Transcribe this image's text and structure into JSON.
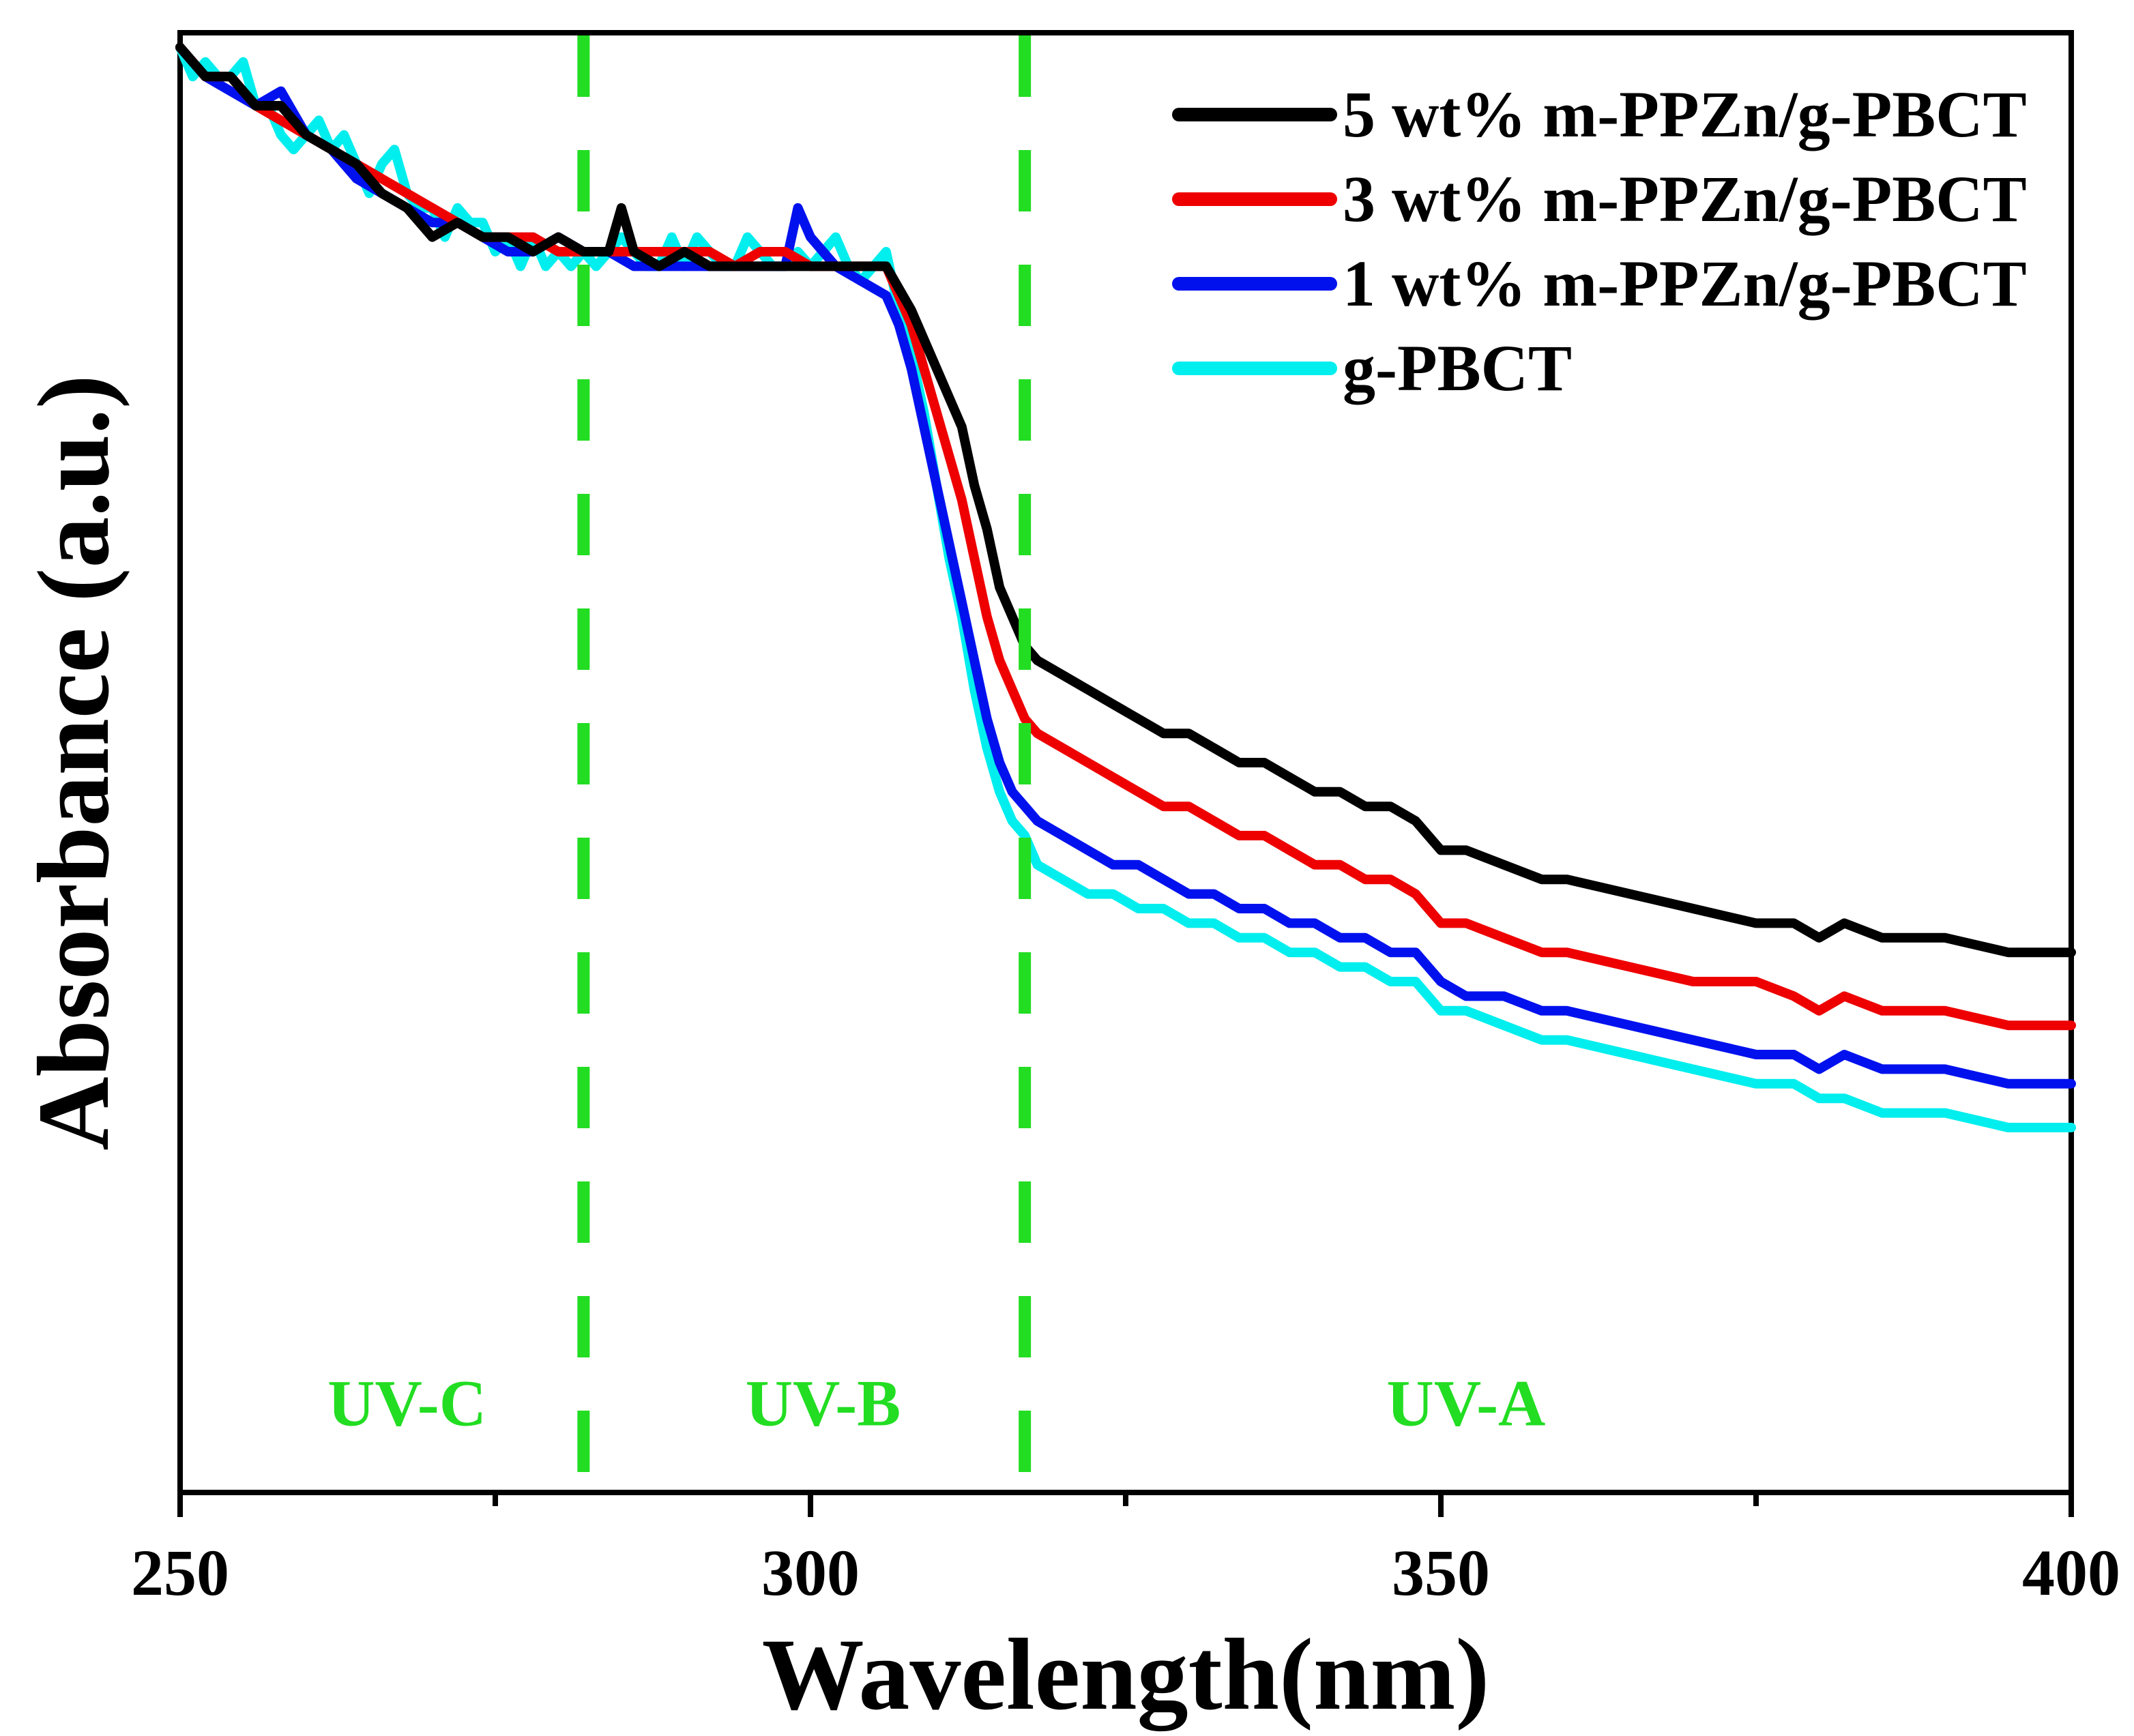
{
  "chart_data": {
    "type": "line",
    "title": "",
    "xlabel": "Wavelength(nm)",
    "ylabel": "Absorbance (a.u.)",
    "xlim": [
      250,
      400
    ],
    "ylim": [
      0,
      1
    ],
    "xticks": [
      250,
      300,
      350,
      400
    ],
    "x_minor_ticks": [
      275,
      325,
      375
    ],
    "grid": false,
    "legend_position": "top-right",
    "annotations": {
      "lines": [
        {
          "x": 282,
          "style": "dashed",
          "color": "#22dd22"
        },
        {
          "x": 317,
          "style": "dashed",
          "color": "#22dd22"
        }
      ],
      "labels": [
        {
          "text": "UV-C",
          "x": 268,
          "y": 0.06,
          "color": "#22dd22"
        },
        {
          "text": "UV-B",
          "x": 301,
          "y": 0.06,
          "color": "#22dd22"
        },
        {
          "text": "UV-A",
          "x": 352,
          "y": 0.06,
          "color": "#22dd22"
        }
      ]
    },
    "series": [
      {
        "name": "5 wt% m-PPZn/g-PBCT",
        "color": "#000000",
        "x": [
          250,
          252,
          254,
          256,
          258,
          260,
          262,
          264,
          266,
          268,
          270,
          272,
          274,
          276,
          278,
          280,
          282,
          284,
          285,
          286,
          288,
          290,
          292,
          294,
          296,
          298,
          300,
          302,
          304,
          306,
          308,
          309,
          310,
          311,
          312,
          313,
          314,
          315,
          316,
          317,
          318,
          320,
          322,
          324,
          326,
          328,
          330,
          332,
          334,
          336,
          338,
          340,
          342,
          344,
          346,
          348,
          349,
          350,
          352,
          355,
          358,
          360,
          365,
          370,
          375,
          378,
          380,
          382,
          385,
          390,
          395,
          400
        ],
        "y": [
          0.99,
          0.97,
          0.97,
          0.95,
          0.95,
          0.93,
          0.92,
          0.91,
          0.89,
          0.88,
          0.86,
          0.87,
          0.86,
          0.86,
          0.85,
          0.86,
          0.85,
          0.85,
          0.88,
          0.85,
          0.84,
          0.85,
          0.84,
          0.84,
          0.84,
          0.84,
          0.84,
          0.84,
          0.84,
          0.84,
          0.81,
          0.79,
          0.77,
          0.75,
          0.73,
          0.69,
          0.66,
          0.62,
          0.6,
          0.58,
          0.57,
          0.56,
          0.55,
          0.54,
          0.53,
          0.52,
          0.52,
          0.51,
          0.5,
          0.5,
          0.49,
          0.48,
          0.48,
          0.47,
          0.47,
          0.46,
          0.45,
          0.44,
          0.44,
          0.43,
          0.42,
          0.42,
          0.41,
          0.4,
          0.39,
          0.39,
          0.38,
          0.39,
          0.38,
          0.38,
          0.37,
          0.37
        ]
      },
      {
        "name": "3 wt% m-PPZn/g-PBCT",
        "color": "#ee0000",
        "x": [
          250,
          252,
          254,
          256,
          258,
          260,
          262,
          264,
          266,
          268,
          270,
          272,
          274,
          276,
          278,
          280,
          282,
          284,
          286,
          288,
          290,
          292,
          294,
          296,
          298,
          300,
          302,
          304,
          306,
          308,
          309,
          310,
          311,
          312,
          313,
          314,
          315,
          316,
          317,
          318,
          320,
          322,
          324,
          326,
          328,
          330,
          332,
          334,
          336,
          338,
          340,
          342,
          344,
          346,
          348,
          349,
          350,
          352,
          355,
          358,
          360,
          365,
          370,
          375,
          378,
          380,
          382,
          385,
          390,
          395,
          400
        ],
        "y": [
          0.99,
          0.97,
          0.97,
          0.95,
          0.94,
          0.93,
          0.92,
          0.91,
          0.9,
          0.89,
          0.88,
          0.87,
          0.86,
          0.86,
          0.86,
          0.85,
          0.85,
          0.85,
          0.85,
          0.85,
          0.85,
          0.85,
          0.84,
          0.85,
          0.85,
          0.84,
          0.84,
          0.84,
          0.84,
          0.8,
          0.77,
          0.74,
          0.71,
          0.68,
          0.64,
          0.6,
          0.57,
          0.55,
          0.53,
          0.52,
          0.51,
          0.5,
          0.49,
          0.48,
          0.47,
          0.47,
          0.46,
          0.45,
          0.45,
          0.44,
          0.43,
          0.43,
          0.42,
          0.42,
          0.41,
          0.4,
          0.39,
          0.39,
          0.38,
          0.37,
          0.37,
          0.36,
          0.35,
          0.35,
          0.34,
          0.33,
          0.34,
          0.33,
          0.33,
          0.32,
          0.32
        ]
      },
      {
        "name": "1 wt% m-PPZn/g-PBCT",
        "color": "#0011ee",
        "x": [
          250,
          252,
          254,
          256,
          258,
          260,
          262,
          264,
          266,
          268,
          270,
          272,
          274,
          276,
          278,
          280,
          282,
          284,
          286,
          288,
          290,
          292,
          294,
          296,
          298,
          299,
          300,
          301,
          302,
          304,
          306,
          307,
          308,
          309,
          310,
          311,
          312,
          313,
          314,
          315,
          316,
          317,
          318,
          320,
          322,
          324,
          326,
          328,
          330,
          332,
          334,
          336,
          338,
          340,
          342,
          344,
          346,
          348,
          349,
          350,
          352,
          355,
          358,
          360,
          365,
          370,
          375,
          378,
          380,
          382,
          385,
          390,
          395,
          400
        ],
        "y": [
          0.99,
          0.97,
          0.96,
          0.95,
          0.96,
          0.93,
          0.92,
          0.9,
          0.89,
          0.88,
          0.87,
          0.87,
          0.86,
          0.85,
          0.85,
          0.86,
          0.85,
          0.85,
          0.84,
          0.84,
          0.84,
          0.84,
          0.84,
          0.84,
          0.84,
          0.88,
          0.86,
          0.85,
          0.84,
          0.83,
          0.82,
          0.8,
          0.77,
          0.73,
          0.69,
          0.65,
          0.61,
          0.57,
          0.53,
          0.5,
          0.48,
          0.47,
          0.46,
          0.45,
          0.44,
          0.43,
          0.43,
          0.42,
          0.41,
          0.41,
          0.4,
          0.4,
          0.39,
          0.39,
          0.38,
          0.38,
          0.37,
          0.37,
          0.36,
          0.35,
          0.34,
          0.34,
          0.33,
          0.33,
          0.32,
          0.31,
          0.3,
          0.3,
          0.29,
          0.3,
          0.29,
          0.29,
          0.28,
          0.28
        ]
      },
      {
        "name": "g-PBCT",
        "color": "#00eeee",
        "x": [
          250,
          251,
          252,
          253,
          254,
          255,
          256,
          257,
          258,
          259,
          260,
          261,
          262,
          263,
          264,
          265,
          266,
          267,
          268,
          269,
          270,
          271,
          272,
          273,
          274,
          275,
          276,
          277,
          278,
          279,
          280,
          281,
          282,
          283,
          284,
          285,
          286,
          287,
          288,
          289,
          290,
          291,
          292,
          293,
          294,
          295,
          296,
          297,
          298,
          299,
          300,
          301,
          302,
          303,
          304,
          305,
          306,
          307,
          308,
          309,
          310,
          311,
          312,
          313,
          314,
          315,
          316,
          317,
          318,
          320,
          322,
          324,
          326,
          328,
          330,
          332,
          334,
          336,
          338,
          340,
          342,
          344,
          346,
          348,
          349,
          350,
          352,
          355,
          358,
          360,
          365,
          370,
          375,
          378,
          380,
          382,
          385,
          390,
          395,
          400
        ],
        "y": [
          0.99,
          0.97,
          0.98,
          0.97,
          0.97,
          0.98,
          0.95,
          0.95,
          0.93,
          0.92,
          0.93,
          0.94,
          0.92,
          0.93,
          0.91,
          0.89,
          0.91,
          0.92,
          0.89,
          0.88,
          0.88,
          0.86,
          0.88,
          0.87,
          0.87,
          0.85,
          0.86,
          0.84,
          0.86,
          0.84,
          0.85,
          0.84,
          0.85,
          0.84,
          0.85,
          0.86,
          0.85,
          0.84,
          0.84,
          0.86,
          0.84,
          0.86,
          0.85,
          0.84,
          0.84,
          0.86,
          0.85,
          0.84,
          0.84,
          0.85,
          0.84,
          0.85,
          0.86,
          0.84,
          0.83,
          0.84,
          0.85,
          0.81,
          0.78,
          0.74,
          0.69,
          0.64,
          0.6,
          0.55,
          0.51,
          0.48,
          0.46,
          0.45,
          0.43,
          0.42,
          0.41,
          0.41,
          0.4,
          0.4,
          0.39,
          0.39,
          0.38,
          0.38,
          0.37,
          0.37,
          0.36,
          0.36,
          0.35,
          0.35,
          0.34,
          0.33,
          0.33,
          0.32,
          0.31,
          0.31,
          0.3,
          0.29,
          0.28,
          0.28,
          0.27,
          0.27,
          0.26,
          0.26,
          0.25,
          0.25
        ]
      }
    ]
  }
}
